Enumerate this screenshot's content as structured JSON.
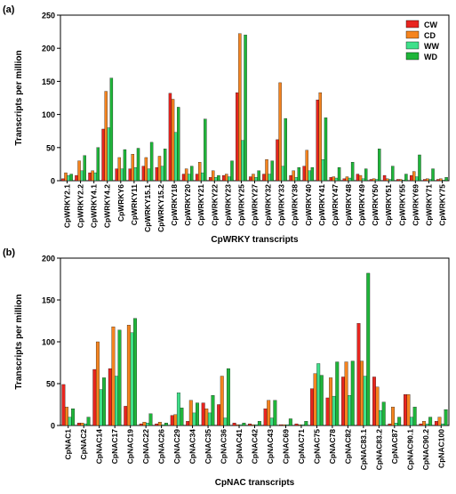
{
  "legend": {
    "items": [
      {
        "label": "CW",
        "color": "#e8251f"
      },
      {
        "label": "CD",
        "color": "#f5841f"
      },
      {
        "label": "WW",
        "color": "#3fe08a"
      },
      {
        "label": "WD",
        "color": "#1fb53a"
      }
    ]
  },
  "chart_data": [
    {
      "type": "bar",
      "panel_label": "(a)",
      "title": "",
      "xlabel": "CpWRKY transcripts",
      "ylabel": "Transcripts per million",
      "ylim": [
        0,
        250
      ],
      "yticks": [
        0,
        50,
        100,
        150,
        200,
        250
      ],
      "grid": false,
      "legend_position": "top-right",
      "categories": [
        "CpWRKY2.1",
        "CpWRKY2.2",
        "CpWRKY4.1",
        "CpWRKY4.2",
        "CpWRKY6",
        "CpWRKY11",
        "CpWRKY15.1",
        "CpWRKY15.2",
        "CpWRKY18",
        "CpWRKY20",
        "CpWRKY21",
        "CpWRKY22",
        "CpWRKY23",
        "CpWRKY25",
        "CpWRKY27",
        "CpWRKY32",
        "CpWRKY33",
        "CpWRKY38",
        "CpWRKY40",
        "CpWRKY41",
        "CpWRKY47",
        "CpWRKY48",
        "CpWRKY49",
        "CpWRKY50",
        "CpWRKY51",
        "CpWRKY55",
        "CpWRKY69",
        "CpWRKY71",
        "CpWRKY75"
      ],
      "series": [
        {
          "name": "CW",
          "values": [
            3,
            8,
            12,
            78,
            18,
            18,
            22,
            20,
            132,
            10,
            10,
            5,
            8,
            133,
            6,
            10,
            62,
            8,
            22,
            122,
            5,
            3,
            10,
            2,
            8,
            2,
            8,
            2,
            2
          ]
        },
        {
          "name": "CD",
          "values": [
            12,
            30,
            15,
            135,
            35,
            40,
            35,
            37,
            123,
            18,
            28,
            15,
            10,
            222,
            10,
            32,
            148,
            15,
            46,
            133,
            6,
            6,
            8,
            3,
            3,
            2,
            14,
            3,
            3
          ]
        },
        {
          "name": "WW",
          "values": [
            8,
            15,
            12,
            80,
            18,
            20,
            18,
            22,
            73,
            10,
            12,
            5,
            6,
            61,
            5,
            10,
            22,
            5,
            15,
            32,
            4,
            4,
            3,
            2,
            2,
            1,
            6,
            2,
            1
          ]
        },
        {
          "name": "WD",
          "values": [
            10,
            38,
            50,
            155,
            47,
            49,
            58,
            48,
            111,
            22,
            93,
            8,
            30,
            220,
            15,
            30,
            94,
            20,
            20,
            95,
            20,
            28,
            18,
            48,
            22,
            10,
            39,
            18,
            5
          ]
        }
      ]
    },
    {
      "type": "bar",
      "panel_label": "(b)",
      "title": "",
      "xlabel": "CpNAC transcripts",
      "ylabel": "Transcripts per million",
      "ylim": [
        0,
        200
      ],
      "yticks": [
        0,
        50,
        100,
        150,
        200
      ],
      "grid": false,
      "categories": [
        "CpNAC1",
        "CpNAC2",
        "CpNAC14",
        "CpNAC17",
        "CpNAC19",
        "CpNAC22",
        "CpNAC26",
        "CpNAC29",
        "CpNAC34",
        "CpNAC35",
        "CpNAC36",
        "CpNAC41",
        "CpNAC42",
        "CpNAC43",
        "CpNAC69",
        "CpNAC71",
        "CpNAC75",
        "CpNAC78",
        "CpNAC82",
        "CpNAC83.1",
        "CpNAC83.2",
        "CpNAC87",
        "CpNAC90.1",
        "CpNAC90.2",
        "CpNAC100"
      ],
      "series": [
        {
          "name": "CW",
          "values": [
            49,
            3,
            67,
            68,
            23,
            2,
            2,
            12,
            5,
            27,
            25,
            3,
            2,
            20,
            1,
            2,
            44,
            33,
            58,
            122,
            58,
            2,
            37,
            2,
            5
          ]
        },
        {
          "name": "CD",
          "values": [
            22,
            3,
            100,
            118,
            120,
            4,
            4,
            13,
            30,
            20,
            59,
            1,
            1,
            30,
            1,
            1,
            62,
            57,
            76,
            77,
            46,
            22,
            37,
            5,
            10
          ]
        },
        {
          "name": "WW",
          "values": [
            10,
            2,
            43,
            59,
            111,
            3,
            1,
            39,
            15,
            15,
            9,
            1,
            1,
            9,
            1,
            1,
            74,
            35,
            36,
            59,
            18,
            3,
            10,
            2,
            2
          ]
        },
        {
          "name": "WD",
          "values": [
            20,
            10,
            57,
            114,
            128,
            14,
            3,
            21,
            27,
            36,
            68,
            3,
            5,
            30,
            8,
            5,
            60,
            76,
            77,
            182,
            28,
            10,
            22,
            10,
            19
          ]
        }
      ]
    }
  ]
}
